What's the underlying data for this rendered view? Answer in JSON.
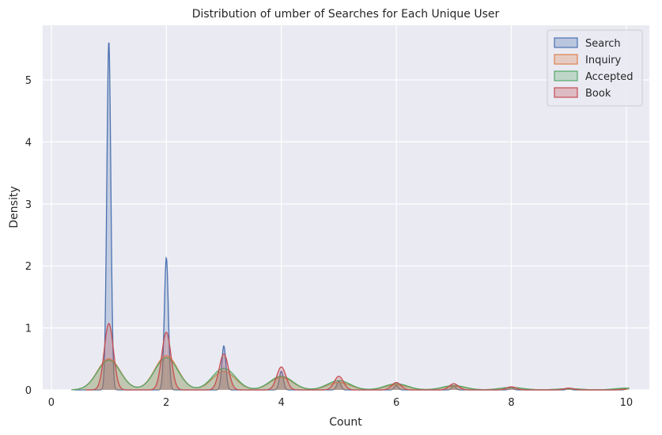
{
  "chart_data": {
    "type": "area",
    "title": "Distribution of umber of Searches for Each Unique User",
    "xlabel": "Count",
    "ylabel": "Density",
    "xlim": [
      -0.15,
      10.4
    ],
    "ylim": [
      0,
      5.88
    ],
    "xticks": [
      0,
      2,
      4,
      6,
      8,
      10
    ],
    "yticks": [
      0,
      1,
      2,
      3,
      4,
      5
    ],
    "grid": true,
    "legend_position": "top-right",
    "series": [
      {
        "name": "Search",
        "color": "#4c72b0",
        "x_range": [
          0.4,
          10.0
        ],
        "peaks": [
          [
            1,
            5.62
          ],
          [
            2,
            2.13
          ],
          [
            3,
            0.71
          ],
          [
            4,
            0.3
          ],
          [
            5,
            0.14
          ],
          [
            6,
            0.07
          ],
          [
            7,
            0.06
          ],
          [
            8,
            0.04
          ],
          [
            9,
            0.02
          ],
          [
            10,
            0.01
          ]
        ],
        "width": 0.035
      },
      {
        "name": "Inquiry",
        "color": "#dd8452",
        "x_range": [
          0.35,
          10.05
        ],
        "peaks": [
          [
            1,
            0.5
          ],
          [
            2,
            0.55
          ],
          [
            3,
            0.3
          ],
          [
            4,
            0.2
          ],
          [
            5,
            0.12
          ],
          [
            6,
            0.08
          ],
          [
            7,
            0.06
          ],
          [
            8,
            0.04
          ],
          [
            9,
            0.02
          ],
          [
            10,
            0.02
          ]
        ],
        "width": 0.2
      },
      {
        "name": "Accepted",
        "color": "#55a868",
        "x_range": [
          0.35,
          10.05
        ],
        "peaks": [
          [
            1,
            0.48
          ],
          [
            2,
            0.52
          ],
          [
            3,
            0.35
          ],
          [
            4,
            0.22
          ],
          [
            5,
            0.15
          ],
          [
            6,
            0.1
          ],
          [
            7,
            0.07
          ],
          [
            8,
            0.04
          ],
          [
            9,
            0.02
          ],
          [
            10,
            0.03
          ]
        ],
        "width": 0.2
      },
      {
        "name": "Book",
        "color": "#c44e52",
        "x_range": [
          0.6,
          10.0
        ],
        "peaks": [
          [
            1,
            1.07
          ],
          [
            2,
            0.93
          ],
          [
            3,
            0.58
          ],
          [
            4,
            0.37
          ],
          [
            5,
            0.22
          ],
          [
            6,
            0.12
          ],
          [
            7,
            0.1
          ],
          [
            8,
            0.05
          ],
          [
            9,
            0.03
          ],
          [
            10,
            0.01
          ]
        ],
        "width": 0.08
      }
    ]
  }
}
